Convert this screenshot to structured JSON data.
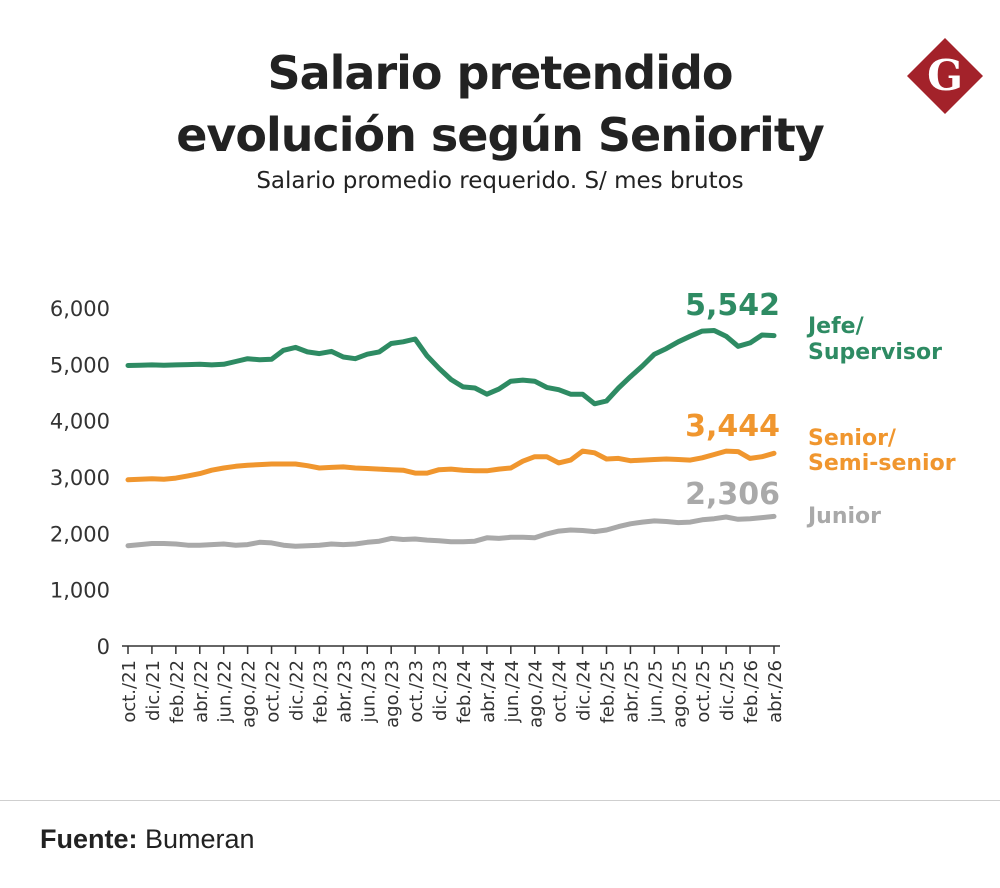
{
  "header": {
    "title_line1": "Salario pretendido",
    "title_line2": "evolución según Seniority",
    "subtitle": "Salario promedio requerido. S/ mes brutos",
    "logo_letter": "G"
  },
  "footer": {
    "source_label": "Fuente:",
    "source_value": "Bumeran"
  },
  "colors": {
    "jefe": "#2e8b63",
    "senior": "#f0962e",
    "junior": "#a9a9a9",
    "logo": "#a3222a",
    "axis": "#333333"
  },
  "chart_data": {
    "type": "line",
    "title": "Salario pretendido evolución según Seniority",
    "subtitle": "Salario promedio requerido. S/ mes brutos",
    "ylim": [
      0,
      6000
    ],
    "yticks": [
      0,
      1000,
      2000,
      3000,
      4000,
      5000,
      6000
    ],
    "ytick_labels": [
      "0",
      "1,000",
      "2,000",
      "3,000",
      "4,000",
      "5,000",
      "6,000"
    ],
    "xtick_labels": [
      "oct./21",
      "dic./21",
      "feb./22",
      "abr./22",
      "jun./22",
      "ago./22",
      "oct./22",
      "dic./22",
      "feb./23",
      "abr./23",
      "jun./23",
      "ago./23",
      "oct./23",
      "dic./23",
      "feb./24",
      "abr./24",
      "jun./24",
      "ago./24",
      "oct./24",
      "dic./24",
      "feb./25",
      "abr./25",
      "jun./25",
      "ago./25",
      "oct./25",
      "dic./25",
      "feb./26",
      "abr./26"
    ],
    "x": [
      "oct./21",
      "nov./21",
      "dic./21",
      "ene./22",
      "feb./22",
      "mar./22",
      "abr./22",
      "may./22",
      "jun./22",
      "jul./22",
      "ago./22",
      "sep./22",
      "oct./22",
      "nov./22",
      "dic./22",
      "ene./23",
      "feb./23",
      "mar./23",
      "abr./23",
      "may./23",
      "jun./23",
      "jul./23",
      "ago./23",
      "sep./23",
      "oct./23",
      "nov./23",
      "dic./23",
      "ene./24",
      "feb./24",
      "mar./24",
      "abr./24",
      "may./24",
      "jun./24",
      "jul./24",
      "ago./24",
      "sep./24",
      "oct./24",
      "nov./24",
      "dic./24",
      "ene./25",
      "feb./25",
      "mar./25",
      "abr./25",
      "may./25",
      "jun./25",
      "jul./25",
      "ago./25",
      "sep./25",
      "oct./25",
      "nov./25",
      "dic./25",
      "ene./26",
      "feb./26",
      "mar./26",
      "abr./26"
    ],
    "legend_position": "right",
    "grid": false,
    "series": [
      {
        "name": "Jefe/ Supervisor",
        "label_lines": [
          "Jefe/",
          "Supervisor"
        ],
        "end_label": "5,542",
        "color_key": "jefe",
        "values": [
          4980,
          4985,
          4990,
          4985,
          4990,
          4995,
          5000,
          4990,
          5000,
          5050,
          5100,
          5080,
          5090,
          5250,
          5300,
          5220,
          5190,
          5230,
          5130,
          5100,
          5180,
          5220,
          5370,
          5400,
          5450,
          5150,
          4930,
          4730,
          4600,
          4580,
          4470,
          4560,
          4700,
          4720,
          4700,
          4590,
          4550,
          4470,
          4470,
          4300,
          4350,
          4580,
          4780,
          4970,
          5180,
          5280,
          5400,
          5500,
          5590,
          5600,
          5500,
          5320,
          5380,
          5520,
          5510
        ]
      },
      {
        "name": "Senior/ Semi-senior",
        "label_lines": [
          "Senior/",
          "Semi-senior"
        ],
        "end_label": "3,444",
        "color_key": "senior",
        "values": [
          2950,
          2960,
          2970,
          2960,
          2980,
          3020,
          3060,
          3120,
          3160,
          3190,
          3210,
          3220,
          3230,
          3230,
          3230,
          3200,
          3160,
          3170,
          3180,
          3160,
          3150,
          3140,
          3130,
          3120,
          3070,
          3070,
          3130,
          3140,
          3120,
          3110,
          3110,
          3140,
          3160,
          3280,
          3360,
          3360,
          3250,
          3300,
          3460,
          3430,
          3320,
          3330,
          3290,
          3300,
          3310,
          3320,
          3310,
          3300,
          3340,
          3400,
          3460,
          3450,
          3330,
          3360,
          3420
        ]
      },
      {
        "name": "Junior",
        "label_lines": [
          "Junior"
        ],
        "end_label": "2,306",
        "color_key": "junior",
        "values": [
          1780,
          1800,
          1820,
          1820,
          1810,
          1790,
          1790,
          1800,
          1810,
          1790,
          1800,
          1840,
          1830,
          1790,
          1770,
          1780,
          1790,
          1810,
          1800,
          1810,
          1840,
          1860,
          1910,
          1890,
          1900,
          1880,
          1870,
          1850,
          1850,
          1860,
          1920,
          1910,
          1930,
          1930,
          1920,
          1990,
          2040,
          2060,
          2050,
          2030,
          2060,
          2120,
          2170,
          2200,
          2220,
          2210,
          2190,
          2200,
          2240,
          2260,
          2290,
          2250,
          2260,
          2280,
          2300
        ]
      }
    ]
  }
}
